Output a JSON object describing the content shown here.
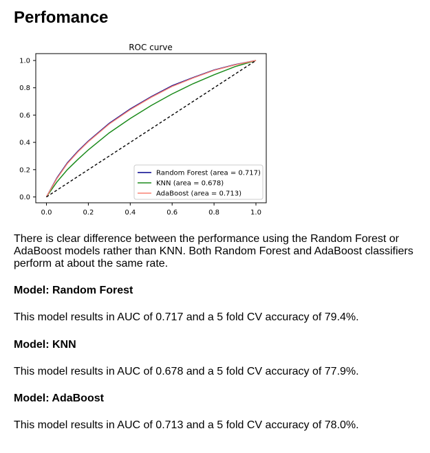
{
  "page": {
    "title": "Perfomance",
    "summary": "There is clear difference between the performance using the Random Forest or AdaBoost models rather than KNN. Both Random Forest and AdaBoost classifiers perform at about the same rate."
  },
  "models": [
    {
      "heading": "Model: Random Forest",
      "result": "This model results in AUC of 0.717 and a 5 fold CV accuracy of 79.4%."
    },
    {
      "heading": "Model: KNN",
      "result": "This model results in AUC of 0.678 and a 5 fold CV accuracy of 77.9%."
    },
    {
      "heading": "Model: AdaBoost",
      "result": "This model results in AUC of 0.713 and a 5 fold CV accuracy of 78.0%."
    }
  ],
  "chart_data": {
    "type": "line",
    "title": "ROC curve",
    "xlabel": "",
    "ylabel": "",
    "xlim": [
      0.0,
      1.0
    ],
    "ylim": [
      0.0,
      1.0
    ],
    "xticks": [
      "0.0",
      "0.2",
      "0.4",
      "0.6",
      "0.8",
      "1.0"
    ],
    "yticks": [
      "0.0",
      "0.2",
      "0.4",
      "0.6",
      "0.8",
      "1.0"
    ],
    "grid": false,
    "legend_position": "lower-right",
    "series": [
      {
        "name": "Random Forest (area = 0.717)",
        "color": "#00008b",
        "style": "solid",
        "x": [
          0.0,
          0.05,
          0.1,
          0.15,
          0.2,
          0.3,
          0.4,
          0.5,
          0.6,
          0.7,
          0.8,
          0.9,
          1.0
        ],
        "y": [
          0.0,
          0.14,
          0.25,
          0.335,
          0.41,
          0.54,
          0.645,
          0.735,
          0.815,
          0.875,
          0.93,
          0.97,
          1.0
        ]
      },
      {
        "name": "KNN (area = 0.678)",
        "color": "#1a8a1a",
        "style": "solid",
        "x": [
          0.0,
          0.05,
          0.1,
          0.15,
          0.2,
          0.3,
          0.4,
          0.5,
          0.6,
          0.7,
          0.8,
          0.9,
          1.0
        ],
        "y": [
          0.0,
          0.11,
          0.2,
          0.275,
          0.345,
          0.47,
          0.575,
          0.67,
          0.755,
          0.83,
          0.895,
          0.955,
          1.0
        ]
      },
      {
        "name": "AdaBoost (area = 0.713)",
        "color": "#fa8072",
        "style": "solid",
        "x": [
          0.0,
          0.05,
          0.1,
          0.15,
          0.2,
          0.3,
          0.4,
          0.5,
          0.6,
          0.7,
          0.8,
          0.9,
          1.0
        ],
        "y": [
          0.0,
          0.135,
          0.245,
          0.33,
          0.405,
          0.535,
          0.64,
          0.73,
          0.81,
          0.872,
          0.928,
          0.968,
          1.0
        ]
      },
      {
        "color": "#000000",
        "style": "dashed",
        "x": [
          0.0,
          1.0
        ],
        "y": [
          0.0,
          1.0
        ]
      }
    ]
  }
}
